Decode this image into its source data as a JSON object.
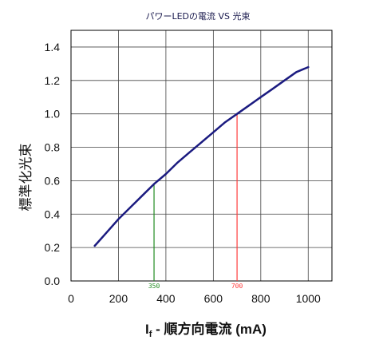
{
  "chart_data": {
    "type": "line",
    "title": "パワーLEDの電流 VS 光束",
    "xlabel": {
      "prefix": "I",
      "subscript": "f",
      "text": " -  順方向電流  (mA)"
    },
    "ylabel": "標準化光束",
    "xlim": [
      0,
      1100
    ],
    "ylim": [
      0,
      1.5
    ],
    "x_ticks": [
      0,
      200,
      400,
      600,
      800,
      1000
    ],
    "x_tick_labels": [
      "0",
      "200",
      "400",
      "600",
      "800",
      "1000"
    ],
    "y_ticks": [
      0.0,
      0.2,
      0.4,
      0.6,
      0.8,
      1.0,
      1.2,
      1.4
    ],
    "y_tick_labels": [
      "0.0",
      "0.2",
      "0.4",
      "0.6",
      "0.8",
      "1.0",
      "1.2",
      "1.4"
    ],
    "grid": true,
    "series": [
      {
        "color": "#1b1b80",
        "points": [
          [
            100,
            0.21
          ],
          [
            150,
            0.29
          ],
          [
            200,
            0.37
          ],
          [
            250,
            0.44
          ],
          [
            300,
            0.51
          ],
          [
            350,
            0.58
          ],
          [
            400,
            0.64
          ],
          [
            450,
            0.71
          ],
          [
            500,
            0.77
          ],
          [
            550,
            0.83
          ],
          [
            600,
            0.89
          ],
          [
            650,
            0.95
          ],
          [
            700,
            1.0
          ],
          [
            750,
            1.05
          ],
          [
            800,
            1.1
          ],
          [
            850,
            1.15
          ],
          [
            900,
            1.2
          ],
          [
            950,
            1.25
          ],
          [
            1000,
            1.28
          ]
        ]
      }
    ],
    "markers": [
      {
        "x": 350,
        "y": 0.58,
        "label": "350",
        "color": "#228b22"
      },
      {
        "x": 700,
        "y": 1.0,
        "label": "700",
        "color": "#ff3b3b"
      }
    ]
  }
}
